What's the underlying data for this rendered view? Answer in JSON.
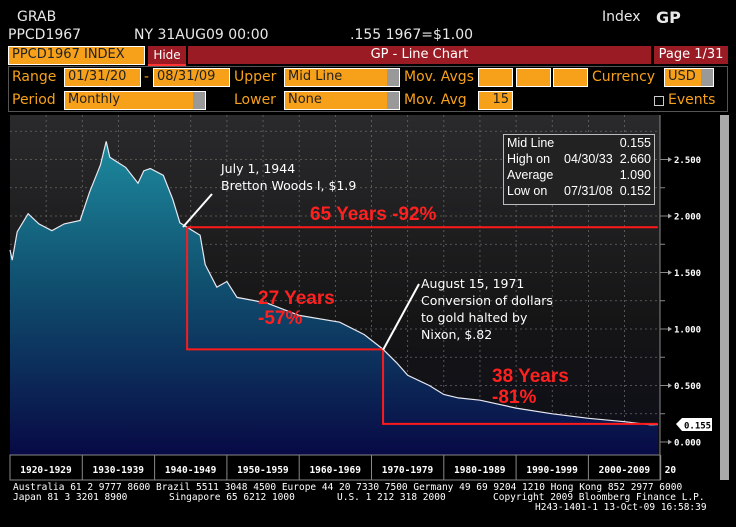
{
  "header": {
    "grab": "GRAB",
    "ticker": "PPCD1967",
    "location_date": "NY 31AUG09 00:00",
    "last_value": ".155 1967=$1.00",
    "index_label": "Index",
    "function_code": "GP"
  },
  "toolbar": {
    "security": "PPCD1967 INDEX",
    "hide": "Hide",
    "title": "GP - Line Chart",
    "page": "Page 1/31"
  },
  "controls": {
    "range_label": "Range",
    "range_start": "01/31/20",
    "range_sep": "-",
    "range_end": "08/31/09",
    "upper_label": "Upper",
    "upper_value": "Mid Line",
    "mov_avgs_label": "Mov. Avgs",
    "mov_avgs_values": [
      "",
      "",
      ""
    ],
    "currency_label": "Currency",
    "currency_value": "USD",
    "period_label": "Period",
    "period_value": "Monthly",
    "lower_label": "Lower",
    "lower_value": "None",
    "mov_avg_label": "Mov. Avg",
    "mov_avg_value": "15",
    "events_label": "Events"
  },
  "stats": {
    "rows": [
      {
        "label": "Mid Line",
        "date": "",
        "value": "0.155"
      },
      {
        "label": "High on",
        "date": "04/30/33",
        "value": "2.660"
      },
      {
        "label": "Average",
        "date": "",
        "value": "1.090"
      },
      {
        "label": "Low on",
        "date": "07/31/08",
        "value": "0.152"
      }
    ]
  },
  "annotations": {
    "bretton_line1": "July 1, 1944",
    "bretton_line2": "Bretton Woods I, $1.9",
    "nixon_line1": "August 15, 1971",
    "nixon_line2": "Conversion of dollars",
    "nixon_line3": "to gold halted by",
    "nixon_line4": "Nixon, $.82",
    "span65": "65 Years  -92%",
    "span27_years": "27 Years",
    "span27_pct": "-57%",
    "span38_years": "38 Years",
    "span38_pct": "-81%"
  },
  "footer": {
    "line1": "Australia 61 2 9777 8600 Brazil 5511 3048 4500 Europe 44 20 7330 7500 Germany 49 69 9204 1210 Hong Kong 852 2977 6000",
    "line2a": "Japan 81 3 3201 8900",
    "line2b": "Singapore 65 6212 1000",
    "line2c": "U.S. 1 212 318 2000",
    "line2d": "Copyright 2009 Bloomberg Finance L.P.",
    "line3": "H243-1401-1 13-Oct-09 16:58:39"
  },
  "colors": {
    "accent": "#f7a11a",
    "bar": "#9b1b24",
    "annotation_red": "#ff2020"
  },
  "chart_data": {
    "type": "area",
    "title": "GP - Line Chart",
    "series": [
      {
        "name": "PPCD1967 INDEX",
        "x": [
          1920.0,
          1920.3,
          1921.0,
          1922.5,
          1924.0,
          1925.8,
          1927.5,
          1929.7,
          1931.0,
          1932.5,
          1933.3,
          1933.8,
          1935.0,
          1936.0,
          1937.7,
          1938.5,
          1939.4,
          1941.2,
          1942.5,
          1943.5,
          1944.5,
          1946.3,
          1947.0,
          1948.6,
          1950.0,
          1951.4,
          1955.5,
          1960.0,
          1965.6,
          1969.0,
          1971.6,
          1973.5,
          1975.0,
          1978.0,
          1980.0,
          1982.0,
          1985.0,
          1990.0,
          1995.0,
          2000.0,
          2005.0,
          2008.6,
          2009.6
        ],
        "y": [
          1.7,
          1.61,
          1.86,
          2.02,
          1.93,
          1.87,
          1.93,
          1.96,
          2.21,
          2.45,
          2.66,
          2.52,
          2.47,
          2.43,
          2.29,
          2.4,
          2.42,
          2.36,
          2.15,
          1.94,
          1.9,
          1.83,
          1.57,
          1.37,
          1.42,
          1.28,
          1.23,
          1.12,
          1.06,
          0.95,
          0.82,
          0.7,
          0.59,
          0.5,
          0.42,
          0.39,
          0.37,
          0.3,
          0.25,
          0.21,
          0.18,
          0.152,
          0.155
        ]
      }
    ],
    "reference_lines": [
      {
        "label": "65 Years -92%",
        "from": 1944.5,
        "to": 2009.6,
        "level": 1.9
      },
      {
        "label": "27 Years -57%",
        "from": 1944.5,
        "to": 1971.6,
        "start": 1.9,
        "end": 0.82
      },
      {
        "label": "38 Years -81%",
        "from": 1971.6,
        "to": 2009.6,
        "start": 0.82,
        "end": 0.16
      }
    ],
    "xlim": [
      1920,
      2010
    ],
    "ylim": [
      0,
      2.75
    ],
    "x_tick_labels": [
      "1920-1929",
      "1930-1939",
      "1940-1949",
      "1950-1959",
      "1960-1969",
      "1970-1979",
      "1980-1989",
      "1990-1999",
      "2000-2009",
      "20"
    ],
    "y_ticks": [
      0,
      0.5,
      1.0,
      1.5,
      2.0,
      2.5
    ],
    "y_tick_labels": [
      "0.000",
      "0.500",
      "1.000",
      "1.500",
      "2.000",
      "2.500"
    ],
    "last_value_tag": "0.155",
    "grid": true,
    "axis_side": "right"
  }
}
